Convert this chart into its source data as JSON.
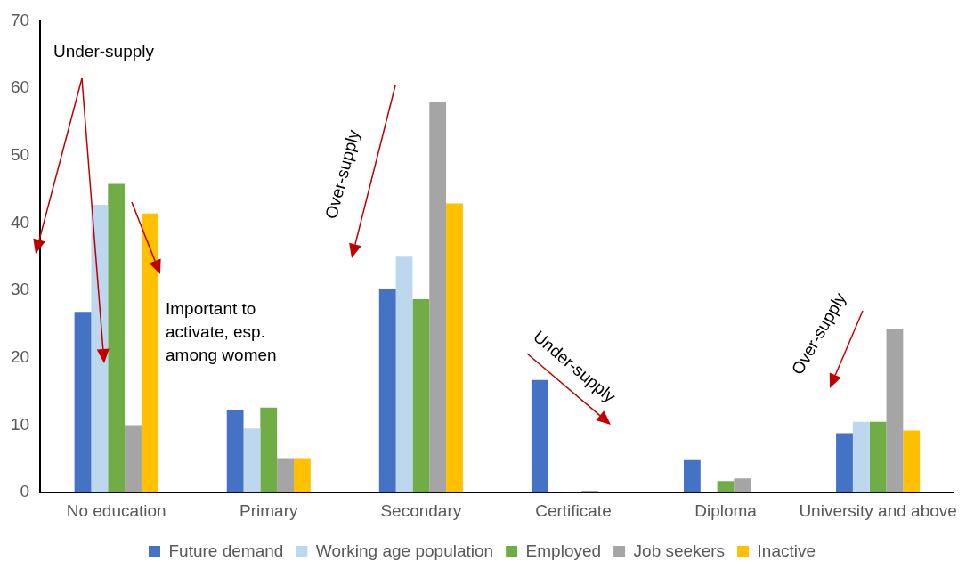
{
  "chart_data": {
    "type": "bar",
    "categories": [
      "No education",
      "Primary",
      "Secondary",
      "Certificate",
      "Diploma",
      "University and above"
    ],
    "series": [
      {
        "name": "Future demand",
        "color": "#4472c4",
        "values": [
          26.8,
          12.2,
          30.2,
          16.7,
          4.8,
          8.8
        ]
      },
      {
        "name": "Working age population",
        "color": "#bdd7ee",
        "values": [
          42.7,
          9.5,
          35,
          null,
          null,
          10.5
        ]
      },
      {
        "name": "Employed",
        "color": "#70ad47",
        "values": [
          45.8,
          12.6,
          28.7,
          0.1,
          1.7,
          10.5
        ]
      },
      {
        "name": "Job seekers",
        "color": "#a5a5a5",
        "values": [
          10,
          5.1,
          58,
          0.3,
          2.1,
          24.2
        ]
      },
      {
        "name": "Inactive",
        "color": "#ffc000",
        "values": [
          41.4,
          5.1,
          42.9,
          null,
          null,
          9.2
        ]
      }
    ],
    "ylim": [
      0,
      70
    ],
    "yticks": [
      0,
      10,
      20,
      30,
      40,
      50,
      60,
      70
    ],
    "grid": false,
    "legend": "bottom",
    "annotations": [
      "Under-supply",
      "Important to activate, esp. among women",
      "Over-supply",
      "Under-supply",
      "Over-supply"
    ]
  }
}
